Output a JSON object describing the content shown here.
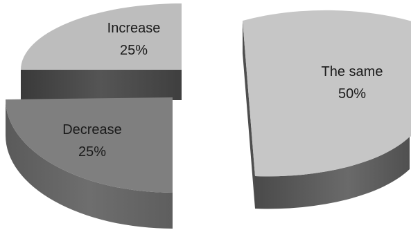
{
  "chart_data": {
    "type": "pie",
    "style": "3d-exploded",
    "title": "",
    "slices": [
      {
        "label": "The same",
        "value": 50,
        "value_text": "50%",
        "color": "#c6c6c6"
      },
      {
        "label": "Decrease",
        "value": 25,
        "value_text": "25%",
        "color": "#7f7f7f"
      },
      {
        "label": "Increase",
        "value": 25,
        "value_text": "25%",
        "color": "#bdbdbd"
      }
    ]
  }
}
